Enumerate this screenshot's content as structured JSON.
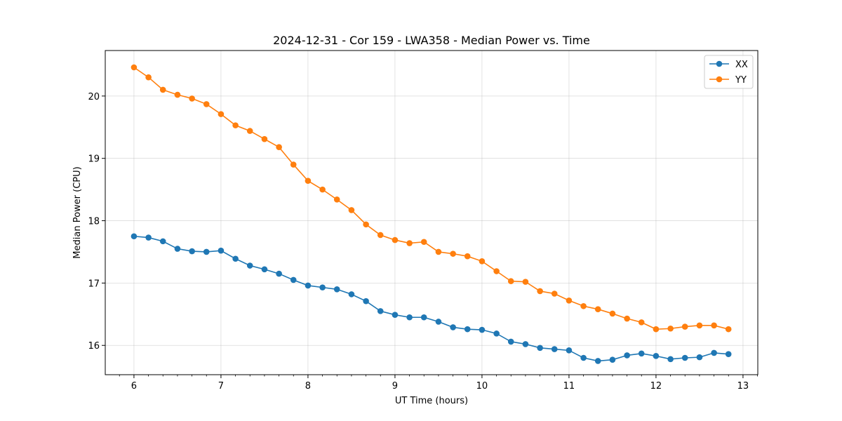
{
  "chart_data": {
    "type": "line",
    "title": "2024-12-31 - Cor 159 - LWA358 - Median Power vs. Time",
    "xlabel": "UT Time (hours)",
    "ylabel": "Median Power (CPU)",
    "xlim": [
      5.67,
      13.17
    ],
    "ylim": [
      15.53,
      20.73
    ],
    "xticks": [
      6,
      7,
      8,
      9,
      10,
      11,
      12,
      13
    ],
    "xtick_labels": [
      "6",
      "7",
      "8",
      "9",
      "10",
      "11",
      "12",
      "13"
    ],
    "yticks": [
      16,
      17,
      18,
      19,
      20
    ],
    "ytick_labels": [
      "16",
      "17",
      "18",
      "19",
      "20"
    ],
    "grid": true,
    "legend_position": "top-right",
    "x": [
      6.0,
      6.167,
      6.333,
      6.5,
      6.667,
      6.833,
      7.0,
      7.167,
      7.333,
      7.5,
      7.667,
      7.833,
      8.0,
      8.167,
      8.333,
      8.5,
      8.667,
      8.833,
      9.0,
      9.167,
      9.333,
      9.5,
      9.667,
      9.833,
      10.0,
      10.167,
      10.333,
      10.5,
      10.667,
      10.833,
      11.0,
      11.167,
      11.333,
      11.5,
      11.667,
      11.833,
      12.0,
      12.167,
      12.333,
      12.5,
      12.667,
      12.833
    ],
    "series": [
      {
        "name": "XX",
        "color": "#1f77b4",
        "values": [
          17.75,
          17.73,
          17.67,
          17.55,
          17.51,
          17.5,
          17.52,
          17.39,
          17.28,
          17.22,
          17.15,
          17.05,
          16.96,
          16.93,
          16.9,
          16.82,
          16.71,
          16.55,
          16.49,
          16.45,
          16.45,
          16.38,
          16.29,
          16.26,
          16.25,
          16.19,
          16.06,
          16.02,
          15.96,
          15.94,
          15.92,
          15.8,
          15.75,
          15.77,
          15.84,
          15.87,
          15.83,
          15.78,
          15.8,
          15.81,
          15.88,
          15.86
        ]
      },
      {
        "name": "YY",
        "color": "#ff7f0e",
        "values": [
          20.46,
          20.3,
          20.1,
          20.02,
          19.96,
          19.87,
          19.71,
          19.53,
          19.44,
          19.31,
          19.18,
          18.9,
          18.64,
          18.5,
          18.34,
          18.17,
          17.94,
          17.77,
          17.69,
          17.64,
          17.66,
          17.5,
          17.47,
          17.43,
          17.35,
          17.19,
          17.03,
          17.02,
          16.87,
          16.83,
          16.72,
          16.63,
          16.58,
          16.51,
          16.43,
          16.37,
          16.26,
          16.27,
          16.3,
          16.32,
          16.32,
          16.26
        ]
      }
    ]
  }
}
